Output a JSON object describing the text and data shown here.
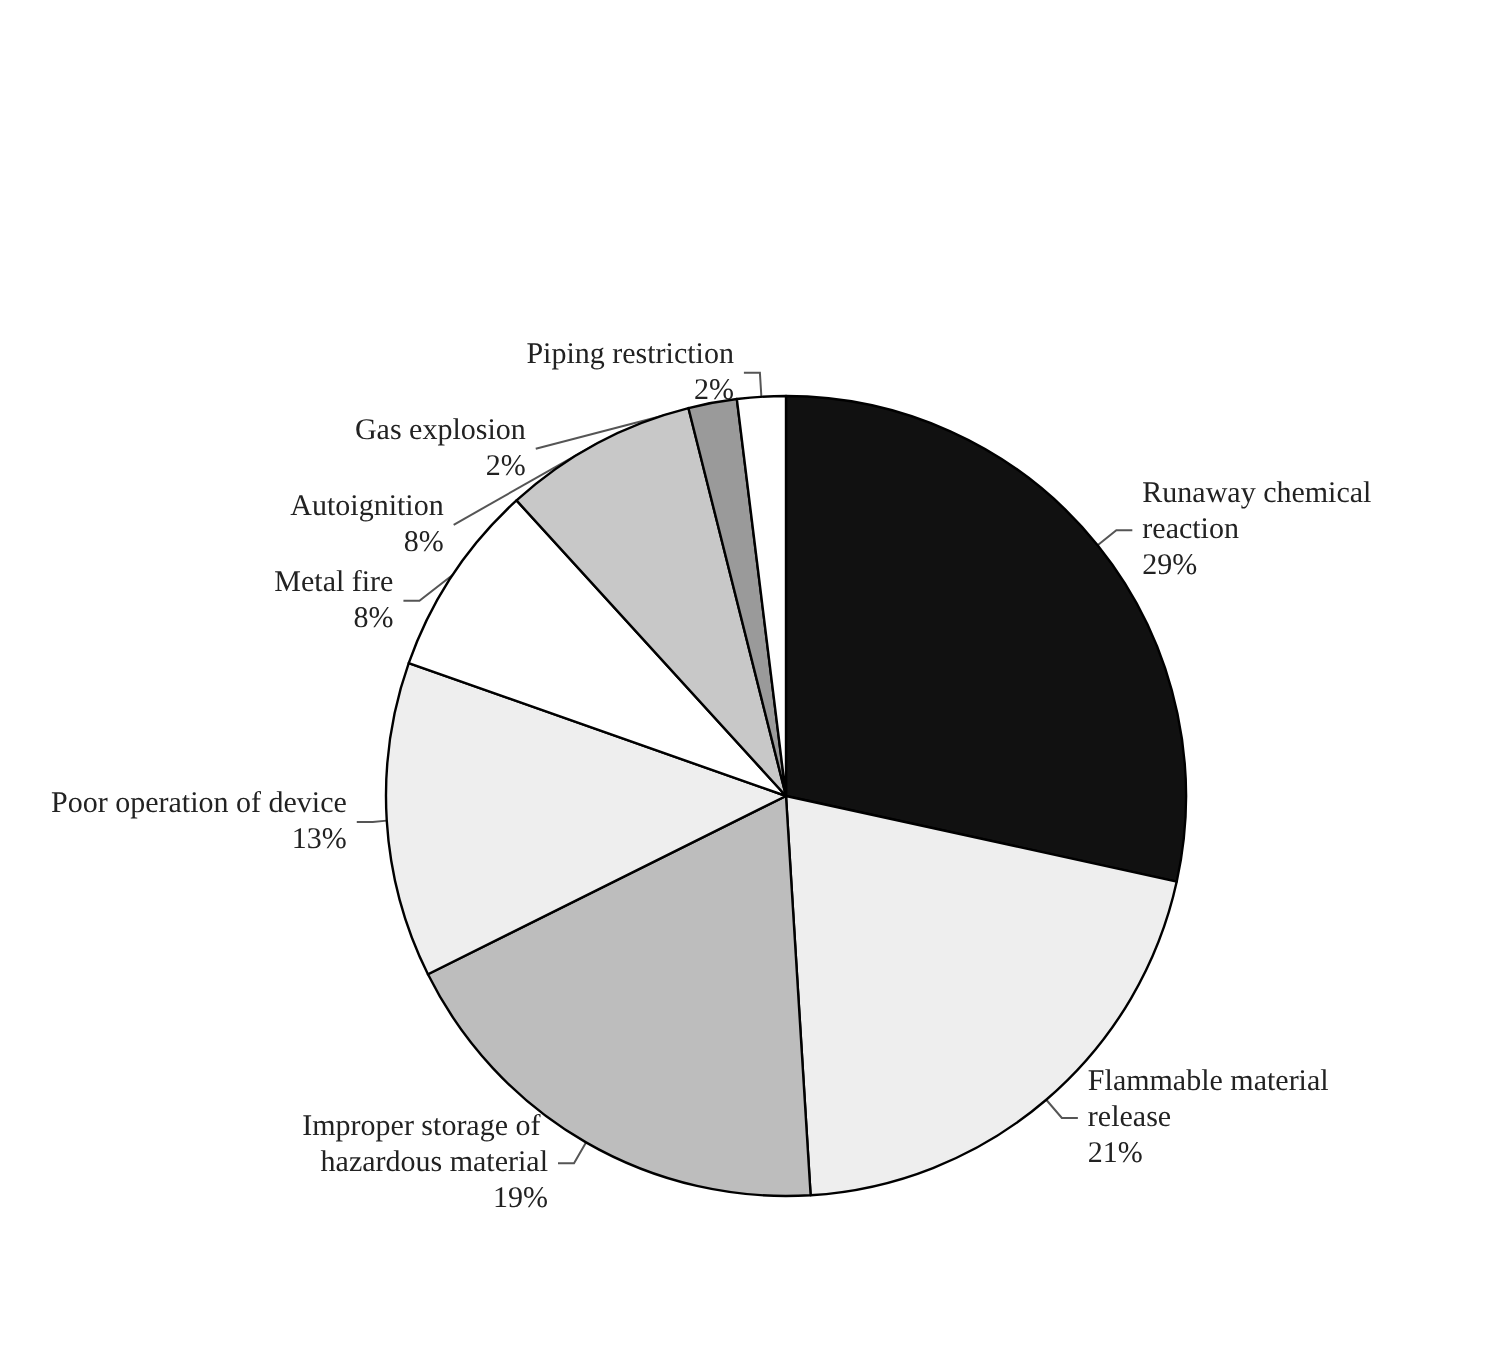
{
  "chart_data": {
    "type": "pie",
    "categories": [
      "Runaway chemical reaction",
      "Flammable material release",
      "Improper storage of hazardous material",
      "Poor operation of device",
      "Metal fire",
      "Autoignition",
      "Gas explosion",
      "Piping restriction"
    ],
    "values": [
      29,
      21,
      19,
      13,
      8,
      8,
      2,
      2
    ],
    "value_labels": [
      "29%",
      "21%",
      "19%",
      "13%",
      "8%",
      "8%",
      "2%",
      "2%"
    ],
    "colors": [
      "#111111",
      "#eeeeee",
      "#bdbdbd",
      "#eeeeee",
      "#ffffff",
      "#c8c8c8",
      "#9a9a9a",
      "#ffffff"
    ],
    "legend": false
  }
}
